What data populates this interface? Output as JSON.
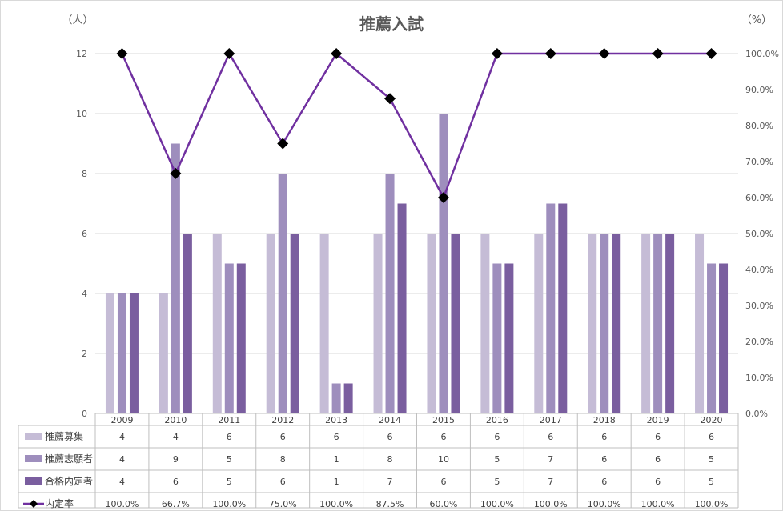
{
  "chart_data": {
    "type": "bar",
    "title": "推薦入試",
    "y_unit_left": "（人）",
    "y_unit_right": "（%）",
    "ylim": [
      0,
      12
    ],
    "y2lim": [
      0,
      1
    ],
    "yticks": [
      "0",
      "2",
      "4",
      "6",
      "8",
      "10",
      "12"
    ],
    "y2ticks": [
      "0.0%",
      "10.0%",
      "20.0%",
      "30.0%",
      "40.0%",
      "50.0%",
      "60.0%",
      "70.0%",
      "80.0%",
      "90.0%",
      "100.0%"
    ],
    "grid": true,
    "categories": [
      "2009",
      "2010",
      "2011",
      "2012",
      "2013",
      "2014",
      "2015",
      "2016",
      "2017",
      "2018",
      "2019",
      "2020"
    ],
    "series": [
      {
        "name": "推薦募集",
        "type": "bar",
        "color": "#c5bcd6",
        "values": [
          4,
          4,
          6,
          6,
          6,
          6,
          6,
          6,
          6,
          6,
          6,
          6
        ],
        "labels": [
          "4",
          "4",
          "6",
          "6",
          "6",
          "6",
          "6",
          "6",
          "6",
          "6",
          "6",
          "6"
        ]
      },
      {
        "name": "推薦志願者",
        "type": "bar",
        "color": "#9e8ebd",
        "values": [
          4,
          9,
          5,
          8,
          1,
          8,
          10,
          5,
          7,
          6,
          6,
          5
        ],
        "labels": [
          "4",
          "9",
          "5",
          "8",
          "1",
          "8",
          "10",
          "5",
          "7",
          "6",
          "6",
          "5"
        ]
      },
      {
        "name": "合格内定者",
        "type": "bar",
        "color": "#7a5e9f",
        "values": [
          4,
          6,
          5,
          6,
          1,
          7,
          6,
          5,
          7,
          6,
          6,
          5
        ],
        "labels": [
          "4",
          "6",
          "5",
          "6",
          "1",
          "7",
          "6",
          "5",
          "7",
          "6",
          "6",
          "5"
        ]
      },
      {
        "name": "内定率",
        "type": "line",
        "axis": "right",
        "color": "#7030a0",
        "marker_color": "#000000",
        "values": [
          1.0,
          0.667,
          1.0,
          0.75,
          1.0,
          0.875,
          0.6,
          1.0,
          1.0,
          1.0,
          1.0,
          1.0
        ],
        "labels": [
          "100.0%",
          "66.7%",
          "100.0%",
          "75.0%",
          "100.0%",
          "87.5%",
          "60.0%",
          "100.0%",
          "100.0%",
          "100.0%",
          "100.0%",
          "100.0%"
        ]
      }
    ],
    "legend": "data-table-bottom"
  }
}
